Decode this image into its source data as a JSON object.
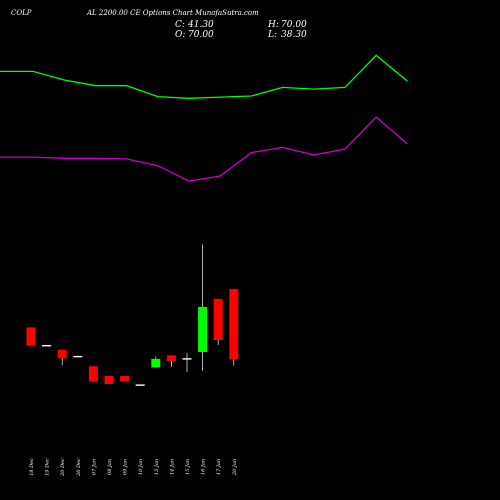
{
  "header": {
    "symbol": "COLP",
    "title": "AL 2200.00 CE Options Chart MunafaSutra.com",
    "close_label": "C:",
    "close_value": "41.30",
    "open_label": "O:",
    "open_value": "70.00",
    "high_label": "H:",
    "high_value": "70.00",
    "low_label": "L:",
    "low_value": "38.30"
  },
  "colors": {
    "background": "#000000",
    "up": "#00ff00",
    "down": "#ff0000",
    "neutral": "#ffffff",
    "green_line": "#00ff00",
    "magenta_line": "#cc00cc",
    "wick": "#ffffff"
  },
  "chart_data": {
    "type": "candlestick",
    "categories": [
      "18 Dec",
      "19 Dec",
      "20 Dec",
      "26 Dec",
      "07 Jan",
      "08 Jan",
      "09 Jan",
      "10 Jan",
      "13 Jan",
      "14 Jan",
      "15 Jan",
      "16 Jan",
      "17 Jan",
      "20 Jan"
    ],
    "candles": [
      {
        "o": 172.6,
        "h": 172.6,
        "c": 154.3,
        "l": 154.3
      },
      {
        "o": 154.3,
        "h": 154.3,
        "c": 154.3,
        "l": 154.3
      },
      {
        "o": 150.3,
        "h": 150.3,
        "c": 141.7,
        "l": 134.9
      },
      {
        "o": 143.4,
        "h": 143.4,
        "c": 143.4,
        "l": 143.4
      },
      {
        "o": 133.7,
        "h": 133.7,
        "c": 118.3,
        "l": 118.3
      },
      {
        "o": 124.0,
        "h": 124.0,
        "c": 116.0,
        "l": 116.0
      },
      {
        "o": 124.0,
        "h": 124.0,
        "c": 118.9,
        "l": 118.9
      },
      {
        "o": 114.9,
        "h": 114.9,
        "c": 114.9,
        "l": 114.9
      },
      {
        "o": 132.6,
        "h": 143.4,
        "c": 141.1,
        "l": 132.6
      },
      {
        "o": 144.6,
        "h": 144.6,
        "c": 138.9,
        "l": 133.1
      },
      {
        "o": 141.1,
        "h": 146.9,
        "c": 141.1,
        "l": 128.0
      },
      {
        "o": 148.0,
        "h": 255.4,
        "c": 193.1,
        "l": 129.1
      },
      {
        "o": 201.1,
        "h": 201.1,
        "c": 160.0,
        "l": 154.9
      },
      {
        "o": 70.0,
        "h": 70.0,
        "c": 41.3,
        "l": 38.3
      }
    ],
    "series": [
      {
        "x": [
          0,
          1,
          2,
          3,
          4,
          5,
          6,
          7,
          8,
          9,
          10,
          11,
          12,
          13
        ],
        "values": [
          428.6,
          428.6,
          420.0,
          414.3,
          414.3,
          403.4,
          401.7,
          402.9,
          404.0,
          412.6,
          410.9,
          412.6,
          444.6,
          418.9
        ],
        "color": "#00ff00"
      },
      {
        "x": [
          0,
          1,
          2,
          3,
          4,
          5,
          6,
          7,
          8,
          9,
          10,
          11,
          12,
          13
        ],
        "values": [
          342.9,
          342.9,
          341.7,
          341.7,
          341.1,
          334.3,
          318.9,
          324.0,
          347.4,
          352.6,
          345.1,
          350.9,
          382.9,
          356.0
        ],
        "color": "#cc00cc"
      }
    ],
    "ylim": [
      0,
      500
    ],
    "grid": false,
    "legend": "none"
  }
}
